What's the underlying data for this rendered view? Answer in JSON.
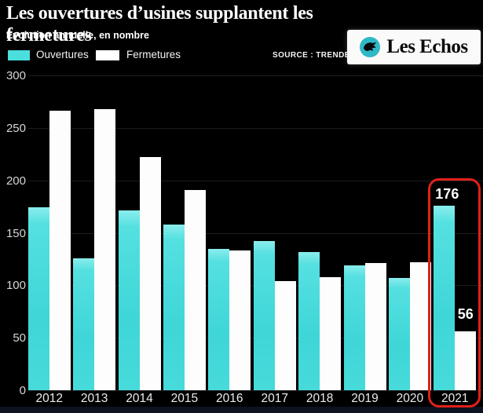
{
  "header": {
    "title": "Les ouvertures d’usines supplantent les fermetures",
    "subtitle": "Evolution annuelle, en nombre",
    "source": "SOURCE : TRENDEO"
  },
  "legend": {
    "items": [
      {
        "label": "Ouvertures",
        "color": "#4adedd"
      },
      {
        "label": "Fermetures",
        "color": "#ffffff"
      }
    ]
  },
  "logo": {
    "text": "Les Echos",
    "icon": "leschos-bird-icon",
    "circle_color": "#2fb9c7",
    "background": "#fbfafa"
  },
  "chart_data": {
    "type": "bar",
    "title": "Les ouvertures d’usines supplantent les fermetures",
    "subtitle": "Evolution annuelle, en nombre",
    "categories": [
      "2012",
      "2013",
      "2014",
      "2015",
      "2016",
      "2017",
      "2018",
      "2019",
      "2020",
      "2021"
    ],
    "series": [
      {
        "name": "Ouvertures",
        "color": "#4adedd",
        "values": [
          174,
          126,
          171,
          158,
          135,
          142,
          132,
          119,
          107,
          176
        ]
      },
      {
        "name": "Fermetures",
        "color": "#ffffff",
        "values": [
          266,
          268,
          222,
          191,
          133,
          104,
          108,
          121,
          122,
          56
        ]
      }
    ],
    "xlabel": "",
    "ylabel": "",
    "ylim": [
      0,
      300
    ],
    "yticks": [
      0,
      50,
      100,
      150,
      200,
      250,
      300
    ],
    "grid": "horizontal",
    "legend_position": "top-left",
    "highlight": {
      "category": "2021",
      "box_color": "#e0201a",
      "labels": {
        "Ouvertures": "176",
        "Fermetures": "56"
      }
    }
  }
}
